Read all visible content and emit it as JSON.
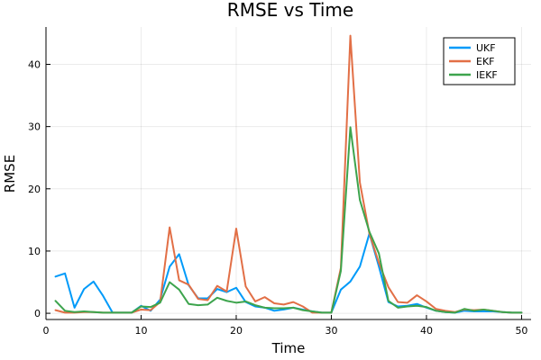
{
  "chart_data": {
    "type": "line",
    "title": "RMSE vs Time",
    "xlabel": "Time",
    "ylabel": "RMSE",
    "xlim": [
      0,
      51
    ],
    "ylim": [
      -1,
      46
    ],
    "xticks": [
      0,
      10,
      20,
      30,
      40,
      50
    ],
    "yticks": [
      0,
      10,
      20,
      30,
      40
    ],
    "xtick_labels": [
      "0",
      "10",
      "20",
      "30",
      "40",
      "50"
    ],
    "ytick_labels": [
      "0",
      "10",
      "20",
      "30",
      "40"
    ],
    "grid": true,
    "legend_position": "top-right",
    "x": [
      1,
      2,
      3,
      4,
      5,
      6,
      7,
      8,
      9,
      10,
      11,
      12,
      13,
      14,
      15,
      16,
      17,
      18,
      19,
      20,
      21,
      22,
      23,
      24,
      25,
      26,
      27,
      28,
      29,
      30,
      31,
      32,
      33,
      34,
      35,
      36,
      37,
      38,
      39,
      40,
      41,
      42,
      43,
      44,
      45,
      46,
      47,
      48,
      49,
      50
    ],
    "series": [
      {
        "name": "UKF",
        "color": "#009af9",
        "values": [
          5.9,
          6.4,
          0.9,
          3.9,
          5.1,
          2.8,
          0.1,
          0.1,
          0.1,
          1.2,
          0.4,
          2.2,
          7.5,
          9.5,
          4.5,
          2.4,
          2.4,
          3.9,
          3.4,
          4.1,
          1.8,
          1.1,
          0.9,
          0.4,
          0.6,
          0.9,
          0.6,
          0.3,
          0.1,
          0.1,
          3.8,
          5.1,
          7.5,
          12.8,
          7.5,
          1.8,
          1.1,
          1.2,
          1.5,
          0.9,
          0.4,
          0.2,
          0.1,
          0.4,
          0.3,
          0.3,
          0.3,
          0.2,
          0.1,
          0.1
        ]
      },
      {
        "name": "EKF",
        "color": "#e26f46",
        "values": [
          0.5,
          0.1,
          0.1,
          0.2,
          0.2,
          0.1,
          0.1,
          0.1,
          0.1,
          0.6,
          0.5,
          1.8,
          13.8,
          5.3,
          4.6,
          2.3,
          2.1,
          4.4,
          3.5,
          13.6,
          4.3,
          1.9,
          2.6,
          1.6,
          1.4,
          1.8,
          1.1,
          0.1,
          0.1,
          0.1,
          7.3,
          44.6,
          21.0,
          12.8,
          8.1,
          4.2,
          1.8,
          1.7,
          2.9,
          1.9,
          0.7,
          0.4,
          0.2,
          0.6,
          0.5,
          0.6,
          0.4,
          0.2,
          0.1,
          0.1
        ]
      },
      {
        "name": "IEKF",
        "color": "#3da44d",
        "values": [
          2.0,
          0.4,
          0.2,
          0.3,
          0.2,
          0.1,
          0.1,
          0.1,
          0.1,
          1.1,
          1.0,
          1.7,
          5.0,
          3.8,
          1.5,
          1.3,
          1.4,
          2.5,
          2.0,
          1.7,
          1.9,
          1.3,
          0.9,
          0.8,
          0.8,
          0.9,
          0.5,
          0.3,
          0.1,
          0.1,
          6.8,
          29.9,
          18.2,
          13.1,
          9.6,
          2.0,
          0.9,
          1.1,
          1.2,
          1.0,
          0.4,
          0.2,
          0.1,
          0.7,
          0.4,
          0.6,
          0.4,
          0.2,
          0.1,
          0.1
        ]
      }
    ]
  }
}
